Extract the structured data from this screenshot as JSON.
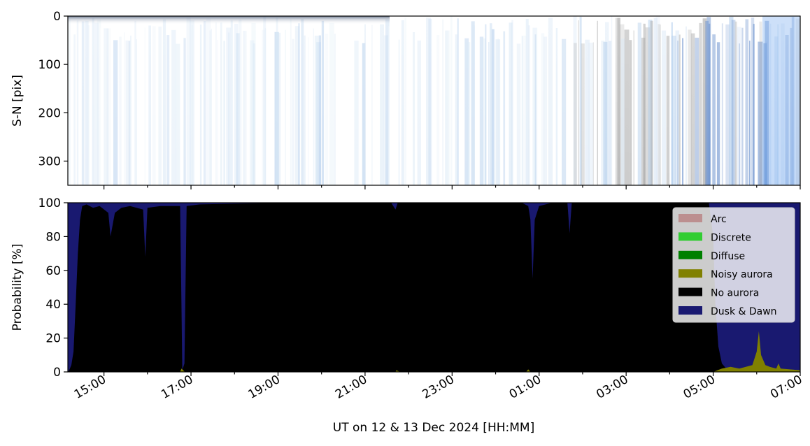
{
  "chart_data": [
    {
      "type": "heatmap",
      "ylabel": "S-N [pix]",
      "yticks": [
        "0",
        "100",
        "200",
        "300"
      ],
      "ylim": [
        350,
        0
      ],
      "description_colors": [
        "#ffffff",
        "#d6e6f5",
        "#a9c8ea",
        "#5c86c8",
        "#9a9a9a",
        "#4a4a60"
      ]
    },
    {
      "type": "area",
      "stacked": true,
      "ylabel": "Probability [%]",
      "xlabel": "UT on 12 & 13 Dec 2024 [HH:MM]",
      "ylim": [
        0,
        100
      ],
      "yticks": [
        "0",
        "20",
        "40",
        "60",
        "80",
        "100"
      ],
      "xlim_hours": [
        14.17,
        31.0
      ],
      "xticks": [
        "15:00",
        "17:00",
        "19:00",
        "21:00",
        "23:00",
        "01:00",
        "03:00",
        "05:00",
        "07:00"
      ],
      "xtick_hours": [
        15,
        17,
        19,
        21,
        23,
        25,
        27,
        29,
        31
      ],
      "legend_position": "upper-right",
      "series": [
        {
          "name": "Arc",
          "color": "#bc8f8f"
        },
        {
          "name": "Discrete",
          "color": "#32cd32"
        },
        {
          "name": "Diffuse",
          "color": "#008000"
        },
        {
          "name": "Noisy aurora",
          "color": "#808000"
        },
        {
          "name": "No aurora",
          "color": "#000000"
        },
        {
          "name": "Dusk & Dawn",
          "color": "#191970"
        }
      ],
      "dusk_dawn_profile": {
        "hours": [
          14.17,
          14.2,
          14.25,
          14.3,
          14.35,
          14.4,
          14.45,
          14.5,
          14.6,
          14.75,
          14.9,
          15.1,
          15.15,
          15.25,
          15.4,
          15.6,
          15.9,
          15.95,
          16.0,
          16.3,
          16.5,
          16.75,
          16.78,
          16.8,
          16.85,
          16.9,
          17.2,
          19.0,
          21.0,
          21.6,
          21.7,
          21.75,
          22.0,
          23.0,
          24.6,
          24.75,
          24.8,
          24.85,
          24.9,
          25.0,
          25.3,
          25.65,
          25.7,
          25.75,
          25.8,
          26.0,
          27.0,
          28.0,
          28.9,
          29.0,
          29.05,
          29.12,
          29.2,
          29.3,
          29.5,
          30.5,
          31.0
        ],
        "values": [
          100,
          99,
          96,
          88,
          60,
          30,
          10,
          2,
          1,
          3,
          2,
          6,
          20,
          6,
          3,
          2,
          4,
          32,
          3,
          2,
          2,
          2,
          60,
          99,
          95,
          2,
          1,
          0,
          0,
          0,
          4,
          0,
          0,
          0,
          0,
          2,
          10,
          45,
          10,
          2,
          0,
          0,
          18,
          0,
          0,
          0,
          0,
          0,
          0,
          20,
          60,
          85,
          95,
          98,
          100,
          100,
          100
        ]
      },
      "noisy_profile": {
        "hours": [
          14.17,
          16.75,
          16.78,
          16.82,
          16.86,
          21.7,
          21.72,
          21.8,
          24.7,
          24.75,
          24.8,
          29.0,
          29.2,
          29.4,
          29.6,
          29.9,
          30.0,
          30.05,
          30.1,
          30.2,
          30.3,
          30.45,
          30.5,
          30.55,
          31.0
        ],
        "values": [
          0,
          0,
          2,
          1,
          0,
          0,
          1,
          0,
          0,
          1.5,
          0,
          0,
          2,
          3,
          2,
          4,
          12,
          24,
          10,
          4,
          3,
          2,
          5,
          2,
          1
        ]
      }
    }
  ]
}
